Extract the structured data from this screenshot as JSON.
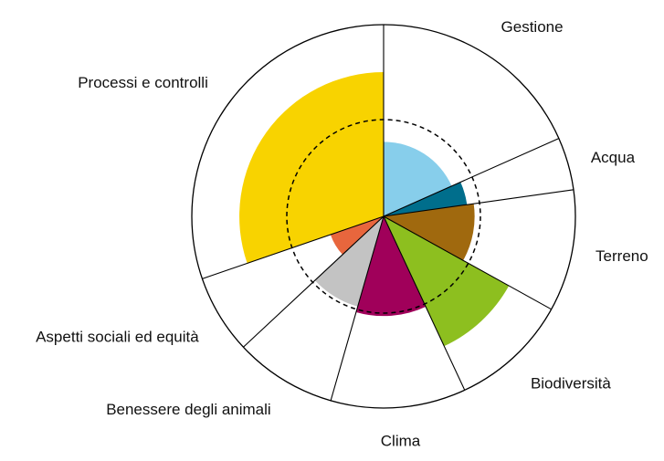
{
  "chart_data": {
    "type": "polar-area",
    "title": "",
    "reference_level": "dashed circle",
    "categories": [
      {
        "label": "Gestione",
        "start_deg": 0,
        "end_deg": 66,
        "value": 0.77,
        "color": "#87ceeb"
      },
      {
        "label": "Acqua",
        "start_deg": 66,
        "end_deg": 82,
        "value": 0.87,
        "color": "#006e8c"
      },
      {
        "label": "Terreno",
        "start_deg": 82,
        "end_deg": 119,
        "value": 0.94,
        "color": "#a0690e"
      },
      {
        "label": "Biodiversità",
        "start_deg": 119,
        "end_deg": 155,
        "value": 1.48,
        "color": "#8dbf1f"
      },
      {
        "label": "Clima",
        "start_deg": 155,
        "end_deg": 196,
        "value": 1.03,
        "color": "#a0005a"
      },
      {
        "label": "Benessere degli animali",
        "start_deg": 196,
        "end_deg": 227,
        "value": 0.97,
        "color": "#c3c3c3"
      },
      {
        "label": "Aspetti sociali ed equità",
        "start_deg": 227,
        "end_deg": 251,
        "value": 0.58,
        "color": "#e8663d"
      },
      {
        "label": "Processi e controlli",
        "start_deg": 251,
        "end_deg": 360,
        "value": 1.49,
        "color": "#f8d300"
      }
    ]
  }
}
